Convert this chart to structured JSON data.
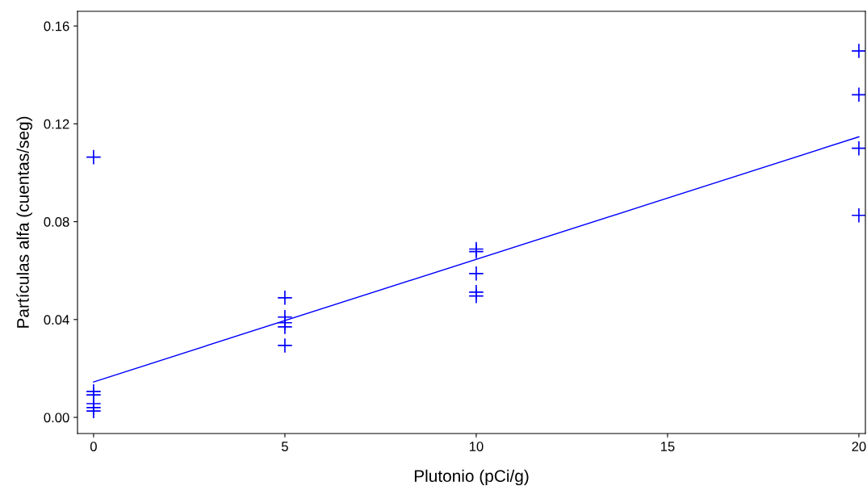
{
  "chart_data": {
    "type": "scatter",
    "xlabel": "Plutonio (pCi/g)",
    "ylabel": "Partículas alfa (cuentas/seg)",
    "series": [
      {
        "color": "#0000ff",
        "marker": "cross",
        "x": [
          0,
          0,
          0,
          0,
          0,
          0,
          5,
          5,
          5,
          5,
          5,
          10,
          10,
          10,
          10,
          10,
          20,
          20,
          20,
          20
        ],
        "values": [
          0.1064,
          0.0106,
          0.0092,
          0.0056,
          0.004,
          0.0026,
          0.0489,
          0.041,
          0.0387,
          0.037,
          0.0294,
          0.0688,
          0.0678,
          0.0588,
          0.0512,
          0.0496,
          0.1498,
          0.1319,
          0.11,
          0.0826
        ]
      },
      {
        "type": "line",
        "color": "#0000ff",
        "x": [
          0,
          20
        ],
        "values": [
          0.0145,
          0.1147
        ]
      }
    ],
    "xlim": [
      -0.42,
      20.17
    ],
    "xticks": [
      0,
      5,
      10,
      15,
      20
    ],
    "ylim": [
      -0.0066,
      0.166
    ],
    "yticks": [
      {
        "value": 0,
        "label": "0.00"
      },
      {
        "value": 0.04,
        "label": "0.04"
      },
      {
        "value": 0.08,
        "label": "0.08"
      },
      {
        "value": 0.12,
        "label": "0.12"
      },
      {
        "value": 0.16,
        "label": "0.16"
      }
    ],
    "grid": false,
    "legend": false
  }
}
